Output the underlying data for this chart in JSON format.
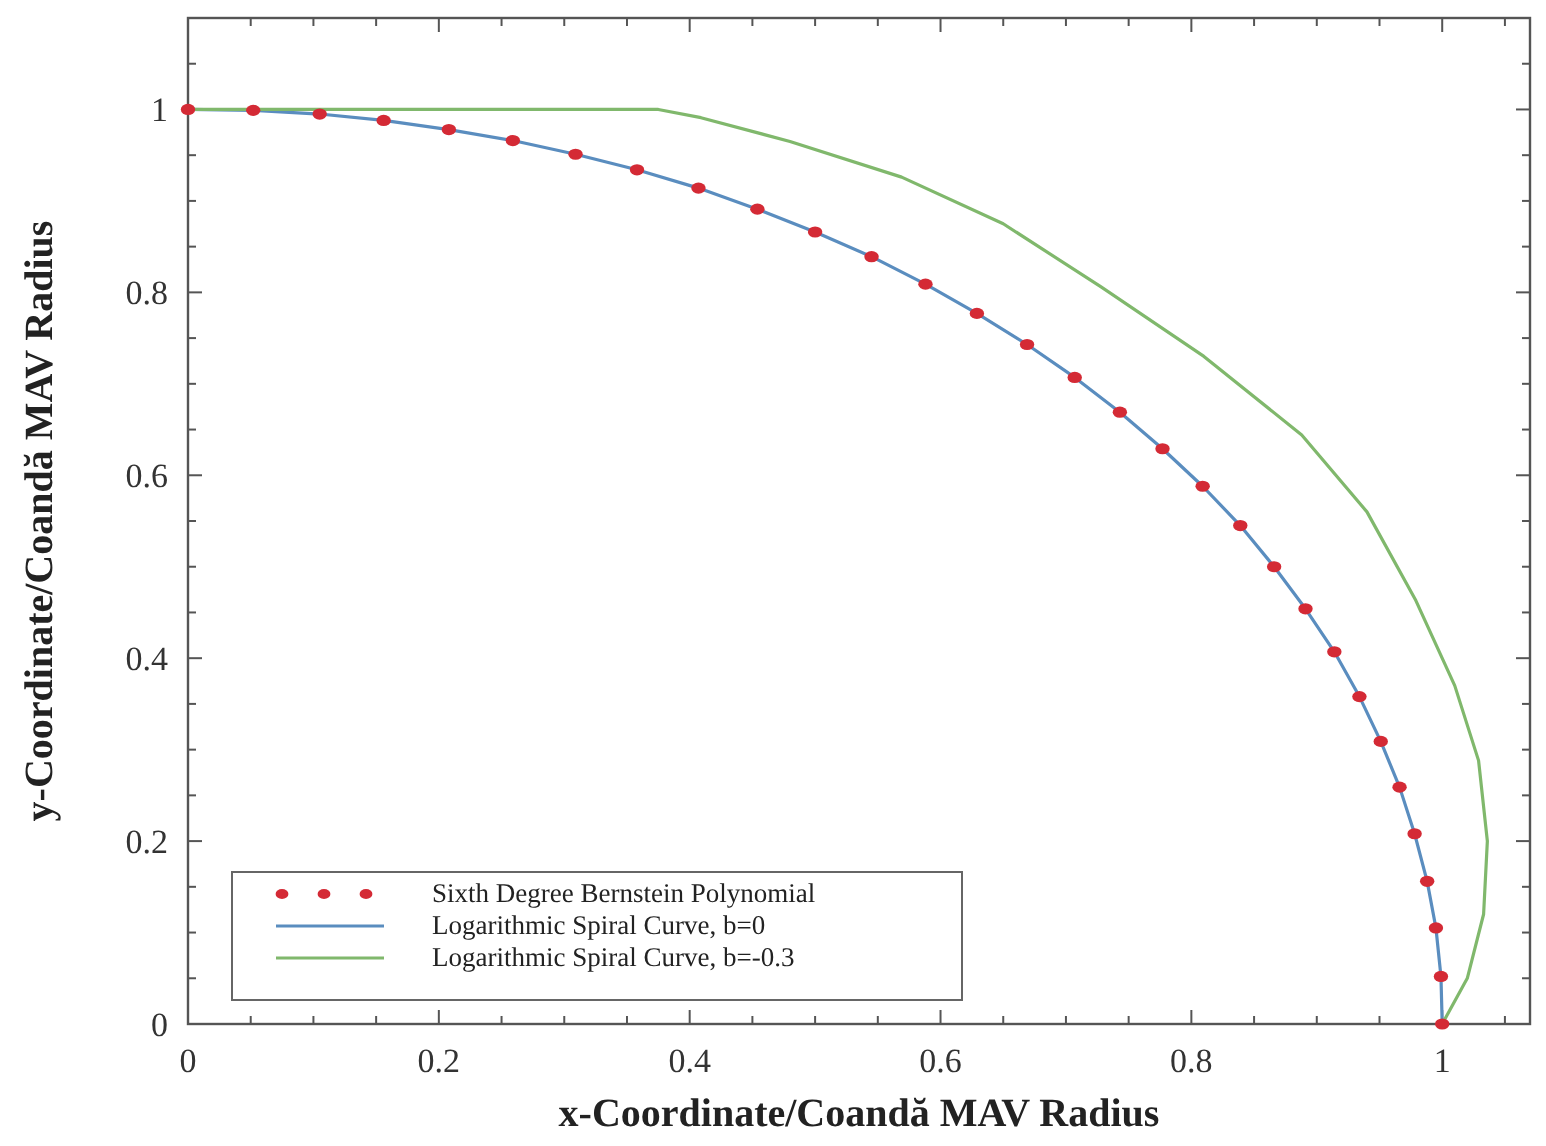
{
  "chart_data": {
    "type": "line",
    "xlabel": "x-Coordinate/Coandă MAV Radius",
    "ylabel": "y-Coordinate/Coandă MAV Radius",
    "xlim": [
      0,
      1.07
    ],
    "ylim": [
      0,
      1.1
    ],
    "xticks": [
      0,
      {
        "value": 0.05,
        "label": null
      },
      {
        "value": 0.1,
        "label": null
      },
      {
        "value": 0.15,
        "label": null
      },
      0.2,
      {
        "value": 0.25,
        "label": null
      },
      {
        "value": 0.3,
        "label": null
      },
      {
        "value": 0.35,
        "label": null
      },
      0.4,
      {
        "value": 0.45,
        "label": null
      },
      {
        "value": 0.5,
        "label": null
      },
      {
        "value": 0.55,
        "label": null
      },
      0.6,
      {
        "value": 0.65,
        "label": null
      },
      {
        "value": 0.7,
        "label": null
      },
      {
        "value": 0.75,
        "label": null
      },
      0.8,
      {
        "value": 0.85,
        "label": null
      },
      {
        "value": 0.9,
        "label": null
      },
      {
        "value": 0.95,
        "label": null
      },
      1,
      {
        "value": 1.05,
        "label": null
      }
    ],
    "yticks": [
      0,
      {
        "value": 0.05,
        "label": null
      },
      {
        "value": 0.1,
        "label": null
      },
      {
        "value": 0.15,
        "label": null
      },
      0.2,
      {
        "value": 0.25,
        "label": null
      },
      {
        "value": 0.3,
        "label": null
      },
      {
        "value": 0.35,
        "label": null
      },
      0.4,
      {
        "value": 0.45,
        "label": null
      },
      {
        "value": 0.5,
        "label": null
      },
      {
        "value": 0.55,
        "label": null
      },
      0.6,
      {
        "value": 0.65,
        "label": null
      },
      {
        "value": 0.7,
        "label": null
      },
      {
        "value": 0.75,
        "label": null
      },
      0.8,
      {
        "value": 0.85,
        "label": null
      },
      {
        "value": 0.9,
        "label": null
      },
      {
        "value": 0.95,
        "label": null
      },
      1,
      {
        "value": 1.05,
        "label": null
      }
    ],
    "grid": false,
    "legend": "bottom left",
    "series": [
      {
        "name": "Sixth Degree Bernstein Polynomial",
        "type": "scatter",
        "marker": "circle",
        "color": "#d42a35",
        "x": [
          0,
          0.052,
          0.105,
          0.156,
          0.208,
          0.259,
          0.309,
          0.358,
          0.407,
          0.454,
          0.5,
          0.545,
          0.588,
          0.629,
          0.669,
          0.707,
          0.743,
          0.777,
          0.809,
          0.839,
          0.866,
          0.891,
          0.914,
          0.934,
          0.951,
          0.966,
          0.978,
          0.988,
          0.995,
          0.999,
          1
        ],
        "values": [
          1,
          0.999,
          0.995,
          0.988,
          0.978,
          0.966,
          0.951,
          0.934,
          0.914,
          0.891,
          0.866,
          0.839,
          0.809,
          0.777,
          0.743,
          0.707,
          0.669,
          0.629,
          0.588,
          0.545,
          0.5,
          0.454,
          0.407,
          0.358,
          0.309,
          0.259,
          0.208,
          0.156,
          0.105,
          0.052,
          0
        ]
      },
      {
        "name": "Logarithmic Spiral Curve, b=0",
        "type": "line",
        "marker": "none",
        "line_style": "solid",
        "color": "#5a8dbf",
        "x": [
          0,
          0.052,
          0.105,
          0.156,
          0.208,
          0.259,
          0.309,
          0.358,
          0.407,
          0.454,
          0.5,
          0.545,
          0.588,
          0.629,
          0.669,
          0.707,
          0.743,
          0.777,
          0.809,
          0.839,
          0.866,
          0.891,
          0.914,
          0.934,
          0.951,
          0.966,
          0.978,
          0.988,
          0.995,
          0.999,
          1
        ],
        "values": [
          1,
          0.999,
          0.995,
          0.988,
          0.978,
          0.966,
          0.951,
          0.934,
          0.914,
          0.891,
          0.866,
          0.839,
          0.809,
          0.777,
          0.743,
          0.707,
          0.669,
          0.629,
          0.588,
          0.545,
          0.5,
          0.454,
          0.407,
          0.358,
          0.309,
          0.259,
          0.208,
          0.156,
          0.105,
          0.052,
          0
        ]
      },
      {
        "name": "Logarithmic Spiral Curve, b=-0.3",
        "type": "line",
        "marker": "none",
        "line_style": "solid",
        "color": "#80b86c",
        "x": [
          0,
          0.375,
          0.409,
          0.48,
          0.569,
          0.65,
          0.728,
          0.81,
          0.888,
          0.94,
          0.979,
          1.01,
          1.029,
          1.036,
          1.033,
          1.02,
          1
        ],
        "values": [
          1,
          1,
          0.991,
          0.965,
          0.926,
          0.875,
          0.806,
          0.73,
          0.644,
          0.56,
          0.463,
          0.37,
          0.288,
          0.2,
          0.12,
          0.05,
          0
        ]
      }
    ]
  }
}
